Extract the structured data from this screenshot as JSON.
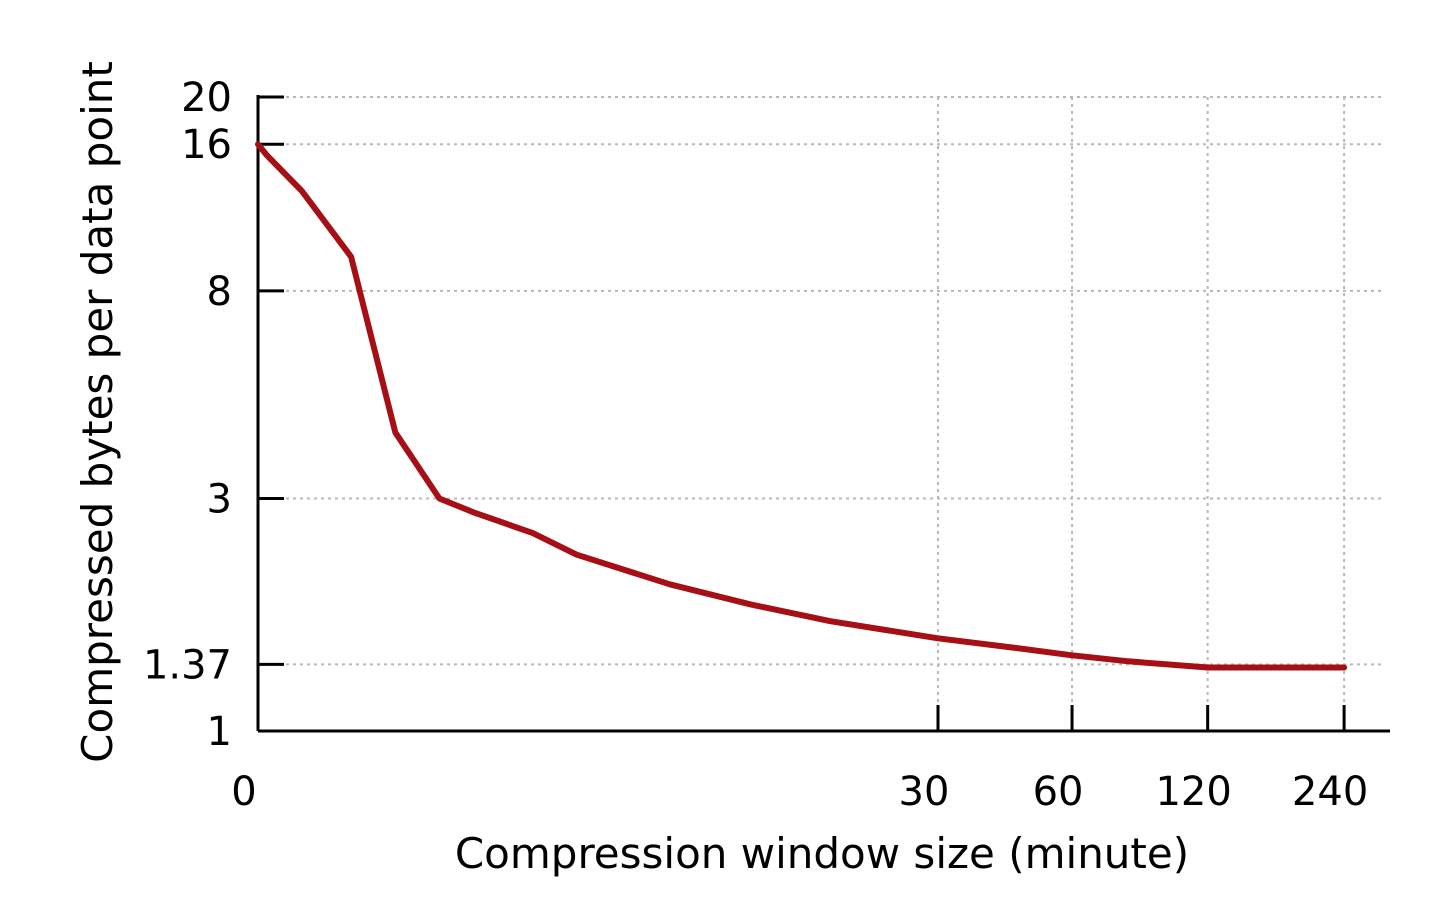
{
  "chart_data": {
    "type": "line",
    "xlabel": "Compression window size (minute)",
    "ylabel": "Compressed bytes per data point",
    "yscale": "log",
    "xscale": "log",
    "ylim": [
      1,
      20
    ],
    "grid": true,
    "x_ticks": [
      {
        "value": 0,
        "label": "0"
      },
      {
        "value": 30,
        "label": "30"
      },
      {
        "value": 60,
        "label": "60"
      },
      {
        "value": 120,
        "label": "120"
      },
      {
        "value": 240,
        "label": "240"
      }
    ],
    "y_ticks": [
      {
        "value": 1,
        "label": "1"
      },
      {
        "value": 1.37,
        "label": "1.37"
      },
      {
        "value": 3,
        "label": "3"
      },
      {
        "value": 8,
        "label": "8"
      },
      {
        "value": 16,
        "label": "16"
      },
      {
        "value": 20,
        "label": "20"
      }
    ],
    "series": [
      {
        "color": "#a50f15",
        "points": [
          {
            "x": 0,
            "y": 16
          },
          {
            "x": 0.045,
            "y": 15.2
          },
          {
            "x": 0.25,
            "y": 12.8
          },
          {
            "x": 0.6,
            "y": 9.4
          },
          {
            "x": 1,
            "y": 4.1
          },
          {
            "x": 1.5,
            "y": 3
          },
          {
            "x": 2,
            "y": 2.8
          },
          {
            "x": 3,
            "y": 2.55
          },
          {
            "x": 4,
            "y": 2.3
          },
          {
            "x": 7,
            "y": 2.0
          },
          {
            "x": 11,
            "y": 1.82
          },
          {
            "x": 17,
            "y": 1.68
          },
          {
            "x": 30,
            "y": 1.55
          },
          {
            "x": 45,
            "y": 1.48
          },
          {
            "x": 60,
            "y": 1.43
          },
          {
            "x": 80,
            "y": 1.39
          },
          {
            "x": 120,
            "y": 1.35
          },
          {
            "x": 240,
            "y": 1.35
          }
        ]
      }
    ]
  }
}
